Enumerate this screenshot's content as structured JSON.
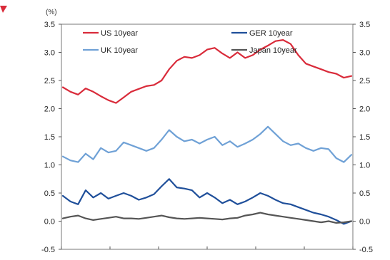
{
  "chart_data": {
    "type": "line",
    "unit_label": "(%)",
    "ylim": [
      -0.5,
      3.5
    ],
    "y_ticks": [
      "-0.5",
      "0.0",
      "0.5",
      "1.0",
      "1.5",
      "2.0",
      "2.5",
      "3.0",
      "3.5"
    ],
    "y_ticks_right": [
      "-0.5",
      "0.0",
      "0.5",
      "1.0",
      "1.5",
      "2.0",
      "2.5",
      "3.0",
      "3.5"
    ],
    "x_ticks_count": 6,
    "grid": false,
    "legend_placement": "top",
    "series": [
      {
        "name": "US 10year",
        "color": "#d92b3a",
        "values": [
          2.38,
          2.3,
          2.25,
          2.36,
          2.3,
          2.22,
          2.15,
          2.1,
          2.2,
          2.3,
          2.35,
          2.4,
          2.42,
          2.5,
          2.7,
          2.85,
          2.92,
          2.9,
          2.95,
          3.05,
          3.08,
          2.98,
          2.9,
          3.0,
          2.9,
          2.95,
          3.05,
          3.12,
          3.2,
          3.22,
          3.15,
          2.95,
          2.8,
          2.75,
          2.7,
          2.65,
          2.62,
          2.55,
          2.58
        ]
      },
      {
        "name": "UK 10year",
        "color": "#6fa1d6",
        "values": [
          1.15,
          1.08,
          1.05,
          1.2,
          1.1,
          1.3,
          1.22,
          1.25,
          1.4,
          1.35,
          1.3,
          1.25,
          1.3,
          1.45,
          1.62,
          1.5,
          1.42,
          1.45,
          1.38,
          1.45,
          1.5,
          1.35,
          1.42,
          1.32,
          1.38,
          1.45,
          1.55,
          1.68,
          1.55,
          1.42,
          1.35,
          1.38,
          1.3,
          1.25,
          1.3,
          1.28,
          1.12,
          1.05,
          1.18
        ]
      },
      {
        "name": "GER 10year",
        "color": "#1f4f9a",
        "values": [
          0.45,
          0.35,
          0.3,
          0.55,
          0.42,
          0.5,
          0.4,
          0.45,
          0.5,
          0.45,
          0.38,
          0.42,
          0.48,
          0.62,
          0.75,
          0.6,
          0.58,
          0.55,
          0.42,
          0.5,
          0.42,
          0.32,
          0.38,
          0.3,
          0.35,
          0.42,
          0.5,
          0.45,
          0.38,
          0.32,
          0.3,
          0.25,
          0.2,
          0.15,
          0.12,
          0.08,
          0.02,
          -0.05,
          0.0
        ]
      },
      {
        "name": "Japan 10year",
        "color": "#555555",
        "values": [
          0.05,
          0.08,
          0.1,
          0.05,
          0.02,
          0.04,
          0.06,
          0.08,
          0.05,
          0.05,
          0.04,
          0.06,
          0.08,
          0.1,
          0.07,
          0.05,
          0.04,
          0.05,
          0.06,
          0.05,
          0.04,
          0.03,
          0.05,
          0.06,
          0.1,
          0.12,
          0.15,
          0.12,
          0.1,
          0.08,
          0.06,
          0.04,
          0.02,
          0.0,
          -0.02,
          0.0,
          -0.03,
          -0.02,
          0.0
        ]
      }
    ]
  }
}
